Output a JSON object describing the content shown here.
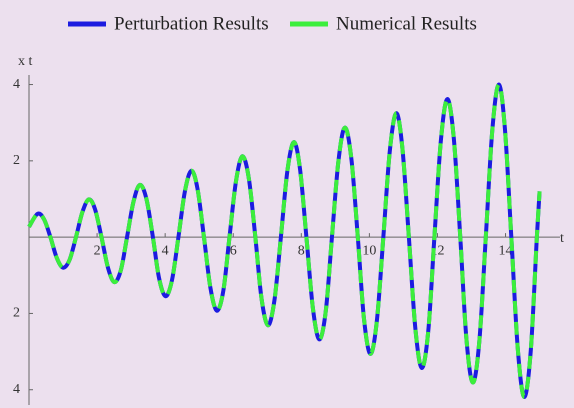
{
  "chart_data": {
    "type": "line",
    "xlabel": "t",
    "ylabel": "x t",
    "x": [
      0,
      0.25,
      0.44,
      0.63,
      0.81,
      1.0,
      1.19,
      1.38,
      1.57,
      1.76,
      1.94,
      2.13,
      2.32,
      2.51,
      2.7,
      2.88,
      3.07,
      3.26,
      3.45,
      3.64,
      3.82,
      4.01,
      4.2,
      4.39,
      4.58,
      4.77,
      4.95,
      5.14,
      5.33,
      5.52,
      5.71,
      5.89,
      6.08,
      6.27,
      6.46,
      6.65,
      6.83,
      7.02,
      7.21,
      7.4,
      7.59,
      7.78,
      7.96,
      8.15,
      8.34,
      8.53,
      8.72,
      8.9,
      9.09,
      9.28,
      9.47,
      9.66,
      9.84,
      10.03,
      10.22,
      10.41,
      10.6,
      10.79,
      10.97,
      11.16,
      11.35,
      11.54,
      11.73,
      11.91,
      12.1,
      12.29,
      12.48,
      12.67,
      12.85,
      13.04,
      13.23,
      13.42,
      13.61,
      13.8,
      13.98,
      14.17,
      14.36,
      14.55,
      14.74,
      14.92,
      15.0
    ],
    "series": [
      {
        "name": "Perturbation Results",
        "color": "#1c1ce0",
        "dashed": false,
        "values": [
          0.27,
          0.61,
          0.47,
          0,
          -0.53,
          -0.8,
          -0.6,
          0,
          0.66,
          0.99,
          0.73,
          0,
          -0.8,
          -1.18,
          -0.86,
          0,
          0.93,
          1.37,
          1.0,
          0,
          -1.07,
          -1.55,
          -1.13,
          0,
          1.2,
          1.74,
          1.27,
          0,
          -1.33,
          -1.93,
          -1.4,
          0,
          1.46,
          2.12,
          1.53,
          0,
          -1.6,
          -2.31,
          -1.66,
          0,
          1.73,
          2.49,
          1.8,
          0,
          -1.86,
          -2.68,
          -1.93,
          0,
          1.99,
          2.87,
          2.06,
          0,
          -2.13,
          -3.06,
          -2.19,
          0,
          2.26,
          3.25,
          2.33,
          0,
          -2.39,
          -3.43,
          -2.46,
          0,
          2.53,
          3.62,
          2.59,
          0,
          -2.66,
          -3.81,
          -2.73,
          0,
          2.79,
          4.0,
          2.86,
          0,
          -2.93,
          -4.19,
          -2.99,
          0,
          1.2
        ]
      },
      {
        "name": "Numerical Results",
        "color": "#3cee3c",
        "dashed": true,
        "values": [
          0.27,
          0.61,
          0.47,
          0,
          -0.53,
          -0.8,
          -0.6,
          0,
          0.66,
          0.99,
          0.73,
          0,
          -0.8,
          -1.18,
          -0.86,
          0,
          0.93,
          1.37,
          1.0,
          0,
          -1.07,
          -1.55,
          -1.13,
          0,
          1.2,
          1.74,
          1.27,
          0,
          -1.33,
          -1.93,
          -1.4,
          0,
          1.46,
          2.12,
          1.53,
          0,
          -1.6,
          -2.31,
          -1.66,
          0,
          1.73,
          2.49,
          1.8,
          0,
          -1.86,
          -2.68,
          -1.93,
          0,
          1.99,
          2.87,
          2.06,
          0,
          -2.13,
          -3.06,
          -2.19,
          0,
          2.26,
          3.25,
          2.33,
          0,
          -2.39,
          -3.43,
          -2.46,
          0,
          2.53,
          3.62,
          2.59,
          0,
          -2.66,
          -3.81,
          -2.73,
          0,
          2.79,
          4.0,
          2.86,
          0,
          -2.93,
          -4.19,
          -2.99,
          0,
          1.2
        ]
      }
    ],
    "xlim": [
      0,
      15.6
    ],
    "ylim": [
      -4.4,
      4.25
    ],
    "xticks": [
      2,
      4,
      6,
      8,
      10,
      12,
      14
    ],
    "yticks": [
      {
        "value": -4,
        "label": "4"
      },
      {
        "value": -2,
        "label": "2"
      },
      {
        "value": 2,
        "label": "2"
      },
      {
        "value": 4,
        "label": "4"
      }
    ],
    "legend": "top"
  }
}
